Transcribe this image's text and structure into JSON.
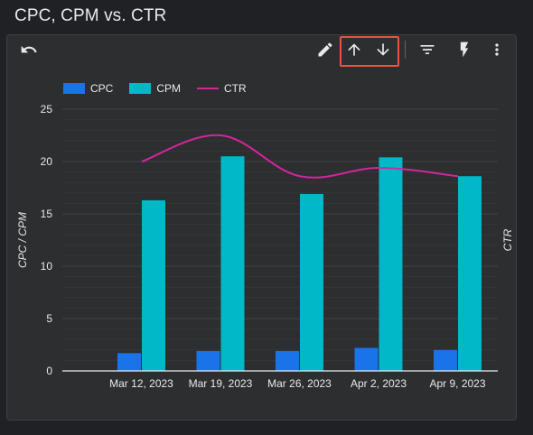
{
  "page": {
    "title": "CPC, CPM vs. CTR"
  },
  "toolbar": {
    "undo_icon": "undo-icon",
    "edit_icon": "pencil-icon",
    "sort_asc_icon": "arrow-up-icon",
    "sort_desc_icon": "arrow-down-icon",
    "filter_icon": "filter-icon",
    "insights_icon": "bolt-icon",
    "more_icon": "more-vert-icon",
    "highlight_color": "#e8543e"
  },
  "colors": {
    "cpc": "#1a73e8",
    "cpm": "#00b8c8",
    "ctr": "#d6249f",
    "grid": "#414245",
    "axis": "#e8eaed",
    "tick_text": "#e8eaed"
  },
  "chart_data": {
    "type": "bar",
    "categories": [
      "Mar 12, 2023",
      "Mar 19, 2023",
      "Mar 26, 2023",
      "Apr 2, 2023",
      "Apr 9, 2023"
    ],
    "series": [
      {
        "name": "CPC",
        "type": "bar",
        "axis": "left",
        "values": [
          1.7,
          1.9,
          1.9,
          2.2,
          2.0
        ]
      },
      {
        "name": "CPM",
        "type": "bar",
        "axis": "left",
        "values": [
          16.3,
          20.5,
          16.9,
          20.4,
          18.6
        ]
      },
      {
        "name": "CTR",
        "type": "line",
        "axis": "right",
        "values": [
          20.0,
          22.5,
          18.6,
          19.4,
          18.6
        ]
      }
    ],
    "ylabel": "CPC / CPM",
    "y2label": "CTR",
    "ylim": [
      0,
      25
    ],
    "yticks": [
      0,
      5,
      10,
      15,
      20,
      25
    ],
    "grid": true,
    "legend": "top-left"
  }
}
